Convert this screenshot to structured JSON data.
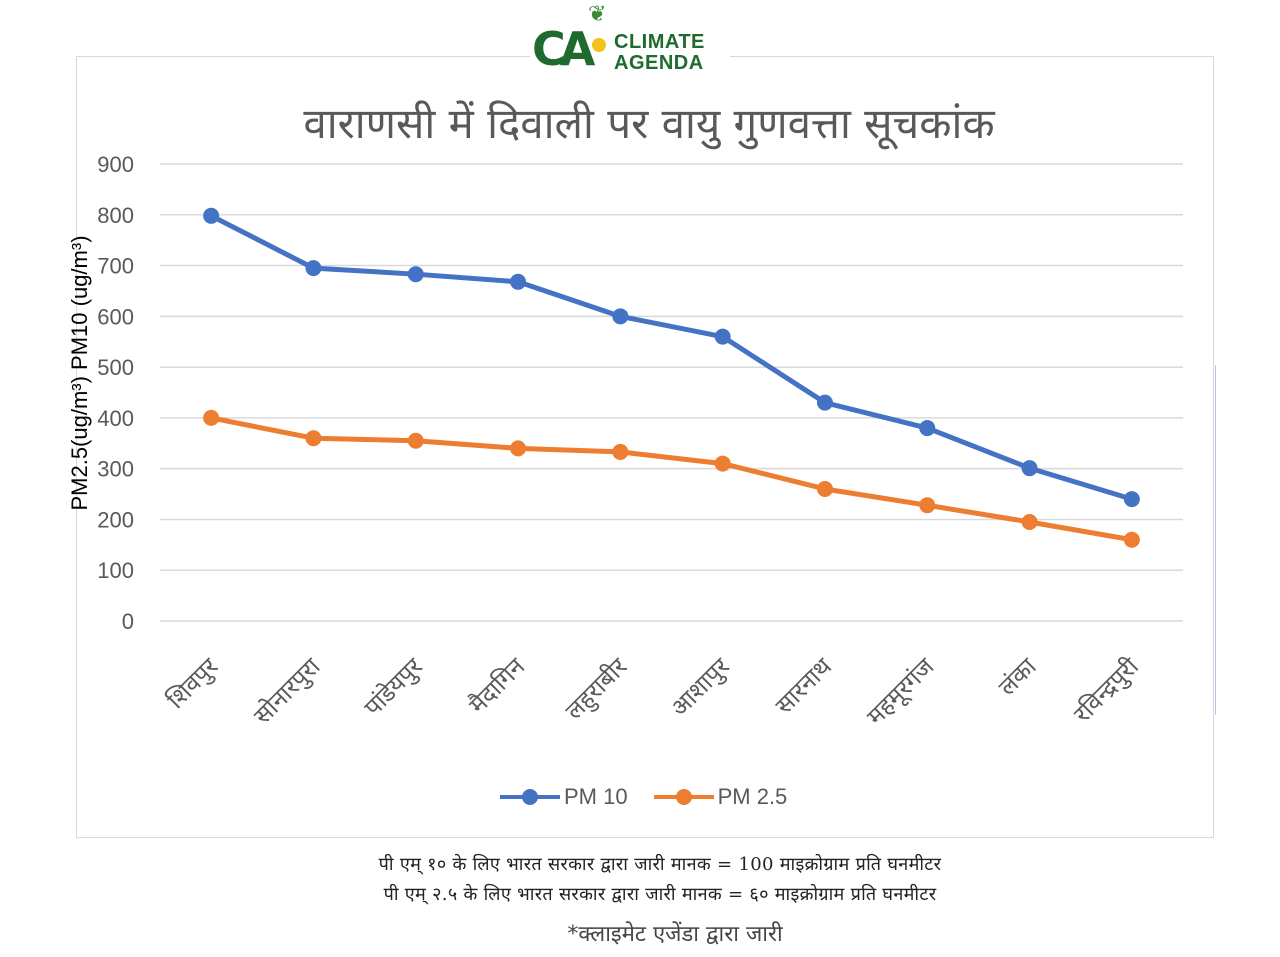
{
  "logo": {
    "mark": "CA",
    "line1": "CLIMATE",
    "line2": "AGENDA",
    "brand_color": "#1f6b2e",
    "sun_color": "#f2c318"
  },
  "chart_data": {
    "type": "line",
    "title": "वाराणसी में दिवाली पर वायु गुणवत्ता सूचकांक",
    "ylabel": "PM2.5(ug/m³) PM10 (ug/m³)",
    "xlabel": "",
    "ylim": [
      0,
      900
    ],
    "yticks": [
      0,
      100,
      200,
      300,
      400,
      500,
      600,
      700,
      800,
      900
    ],
    "grid": true,
    "legend_position": "bottom",
    "categories": [
      "शिवपुर",
      "सोनारपुरा",
      "पांडेयपुर",
      "मैदागिन",
      "लहुराबीर",
      "आशापुर",
      "सारनाथ",
      "महमूरगंज",
      "लंका",
      "रविन्द्रपुरी"
    ],
    "series": [
      {
        "name": "PM 10",
        "color": "#4472c4",
        "values": [
          798,
          695,
          683,
          668,
          600,
          560,
          430,
          380,
          301,
          240
        ]
      },
      {
        "name": "PM 2.5",
        "color": "#ed7d31",
        "values": [
          400,
          360,
          355,
          340,
          333,
          310,
          260,
          228,
          195,
          160
        ]
      }
    ]
  },
  "footnotes": [
    "पी एम्  १० के लिए भारत सरकार द्वारा जारी मानक  = 100 माइक्रोग्राम प्रति घनमीटर",
    "पी एम्  २.५ के लिए भारत सरकार द्वारा जारी मानक  = ६० माइक्रोग्राम प्रति घनमीटर"
  ],
  "credit": "*क्लाइमेट एजेंडा द्वारा जारी"
}
